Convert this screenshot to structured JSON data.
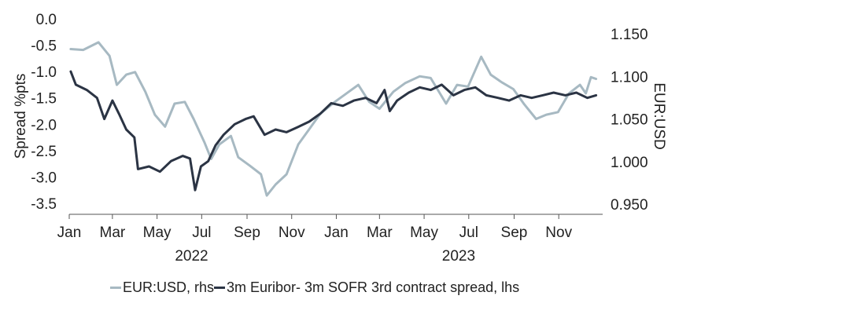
{
  "chart_data": {
    "type": "line",
    "title": "",
    "left_axis": {
      "label": "Spread %pts",
      "min": -3.5,
      "max": 0.0,
      "ticks": [
        "0.0",
        "-0.5",
        "-1.0",
        "-1.5",
        "-2.0",
        "-2.5",
        "-3.0",
        "-3.5"
      ]
    },
    "right_axis": {
      "label": "EUR:USD",
      "min": 0.95,
      "max": 1.15,
      "ticks": [
        "1.150",
        "1.100",
        "1.050",
        "1.000",
        "0.950"
      ]
    },
    "x_axis": {
      "min": "2022-01-01",
      "max": "2023-12-31",
      "month_ticks": [
        {
          "date": "2022-01-01",
          "label": "Jan"
        },
        {
          "date": "2022-03-01",
          "label": "Mar"
        },
        {
          "date": "2022-05-01",
          "label": "May"
        },
        {
          "date": "2022-07-01",
          "label": "Jul"
        },
        {
          "date": "2022-09-01",
          "label": "Sep"
        },
        {
          "date": "2022-11-01",
          "label": "Nov"
        },
        {
          "date": "2023-01-01",
          "label": "Jan"
        },
        {
          "date": "2023-03-01",
          "label": "Mar"
        },
        {
          "date": "2023-05-01",
          "label": "May"
        },
        {
          "date": "2023-07-01",
          "label": "Jul"
        },
        {
          "date": "2023-09-01",
          "label": "Sep"
        },
        {
          "date": "2023-11-01",
          "label": "Nov"
        }
      ],
      "year_labels": [
        {
          "label": "2022",
          "date": "2022-06-15"
        },
        {
          "label": "2023",
          "date": "2023-06-15"
        }
      ]
    },
    "series": [
      {
        "name": "EUR:USD, rhs",
        "axis": "right",
        "color": "#a7b9c2",
        "points": [
          [
            "2022-01-03",
            1.132
          ],
          [
            "2022-01-20",
            1.131
          ],
          [
            "2022-02-10",
            1.14
          ],
          [
            "2022-02-25",
            1.124
          ],
          [
            "2022-03-07",
            1.09
          ],
          [
            "2022-03-20",
            1.102
          ],
          [
            "2022-04-01",
            1.105
          ],
          [
            "2022-04-15",
            1.082
          ],
          [
            "2022-04-28",
            1.055
          ],
          [
            "2022-05-12",
            1.041
          ],
          [
            "2022-05-25",
            1.068
          ],
          [
            "2022-06-08",
            1.07
          ],
          [
            "2022-06-20",
            1.05
          ],
          [
            "2022-07-05",
            1.022
          ],
          [
            "2022-07-14",
            1.003
          ],
          [
            "2022-07-25",
            1.02
          ],
          [
            "2022-08-10",
            1.03
          ],
          [
            "2022-08-20",
            1.005
          ],
          [
            "2022-09-05",
            0.995
          ],
          [
            "2022-09-20",
            0.985
          ],
          [
            "2022-09-28",
            0.96
          ],
          [
            "2022-10-10",
            0.973
          ],
          [
            "2022-10-25",
            0.985
          ],
          [
            "2022-11-10",
            1.02
          ],
          [
            "2022-11-25",
            1.038
          ],
          [
            "2022-12-10",
            1.056
          ],
          [
            "2022-12-30",
            1.07
          ],
          [
            "2023-01-15",
            1.08
          ],
          [
            "2023-01-31",
            1.09
          ],
          [
            "2023-02-15",
            1.07
          ],
          [
            "2023-03-01",
            1.062
          ],
          [
            "2023-03-20",
            1.082
          ],
          [
            "2023-04-05",
            1.092
          ],
          [
            "2023-04-25",
            1.1
          ],
          [
            "2023-05-10",
            1.098
          ],
          [
            "2023-05-31",
            1.068
          ],
          [
            "2023-06-15",
            1.09
          ],
          [
            "2023-06-30",
            1.088
          ],
          [
            "2023-07-18",
            1.123
          ],
          [
            "2023-07-31",
            1.102
          ],
          [
            "2023-08-15",
            1.093
          ],
          [
            "2023-08-31",
            1.085
          ],
          [
            "2023-09-15",
            1.067
          ],
          [
            "2023-10-01",
            1.05
          ],
          [
            "2023-10-15",
            1.055
          ],
          [
            "2023-10-31",
            1.058
          ],
          [
            "2023-11-15",
            1.08
          ],
          [
            "2023-11-30",
            1.09
          ],
          [
            "2023-12-08",
            1.08
          ],
          [
            "2023-12-15",
            1.099
          ],
          [
            "2023-12-22",
            1.097
          ]
        ]
      },
      {
        "name": "3m Euribor- 3m SOFR 3rd contract spread, lhs",
        "axis": "left",
        "color": "#2b3444",
        "points": [
          [
            "2022-01-03",
            -1.0
          ],
          [
            "2022-01-10",
            -1.25
          ],
          [
            "2022-01-25",
            -1.35
          ],
          [
            "2022-02-08",
            -1.5
          ],
          [
            "2022-02-18",
            -1.9
          ],
          [
            "2022-03-01",
            -1.55
          ],
          [
            "2022-03-10",
            -1.8
          ],
          [
            "2022-03-20",
            -2.1
          ],
          [
            "2022-03-31",
            -2.25
          ],
          [
            "2022-04-05",
            -2.85
          ],
          [
            "2022-04-20",
            -2.8
          ],
          [
            "2022-05-05",
            -2.9
          ],
          [
            "2022-05-20",
            -2.7
          ],
          [
            "2022-06-05",
            -2.6
          ],
          [
            "2022-06-15",
            -2.65
          ],
          [
            "2022-06-22",
            -3.25
          ],
          [
            "2022-06-30",
            -2.8
          ],
          [
            "2022-07-10",
            -2.7
          ],
          [
            "2022-07-20",
            -2.4
          ],
          [
            "2022-07-31",
            -2.2
          ],
          [
            "2022-08-15",
            -2.0
          ],
          [
            "2022-08-30",
            -1.9
          ],
          [
            "2022-09-10",
            -1.85
          ],
          [
            "2022-09-25",
            -2.2
          ],
          [
            "2022-10-10",
            -2.1
          ],
          [
            "2022-10-25",
            -2.15
          ],
          [
            "2022-11-10",
            -2.05
          ],
          [
            "2022-11-25",
            -1.95
          ],
          [
            "2022-12-10",
            -1.8
          ],
          [
            "2022-12-25",
            -1.6
          ],
          [
            "2023-01-10",
            -1.65
          ],
          [
            "2023-01-25",
            -1.55
          ],
          [
            "2023-02-10",
            -1.5
          ],
          [
            "2023-02-25",
            -1.6
          ],
          [
            "2023-03-08",
            -1.35
          ],
          [
            "2023-03-15",
            -1.75
          ],
          [
            "2023-03-25",
            -1.55
          ],
          [
            "2023-04-10",
            -1.4
          ],
          [
            "2023-04-25",
            -1.3
          ],
          [
            "2023-05-10",
            -1.35
          ],
          [
            "2023-05-25",
            -1.25
          ],
          [
            "2023-06-10",
            -1.45
          ],
          [
            "2023-06-25",
            -1.35
          ],
          [
            "2023-07-10",
            -1.3
          ],
          [
            "2023-07-25",
            -1.45
          ],
          [
            "2023-08-10",
            -1.5
          ],
          [
            "2023-08-25",
            -1.55
          ],
          [
            "2023-09-10",
            -1.45
          ],
          [
            "2023-09-25",
            -1.5
          ],
          [
            "2023-10-10",
            -1.45
          ],
          [
            "2023-10-25",
            -1.4
          ],
          [
            "2023-11-10",
            -1.45
          ],
          [
            "2023-11-25",
            -1.4
          ],
          [
            "2023-12-10",
            -1.5
          ],
          [
            "2023-12-22",
            -1.45
          ]
        ]
      }
    ],
    "grid": false,
    "legend_position": "bottom"
  },
  "legend": {
    "items": [
      {
        "label": "EUR:USD, rhs",
        "color": "#a7b9c2"
      },
      {
        "label": "3m Euribor- 3m SOFR 3rd contract spread, lhs",
        "color": "#2b3444"
      }
    ]
  }
}
